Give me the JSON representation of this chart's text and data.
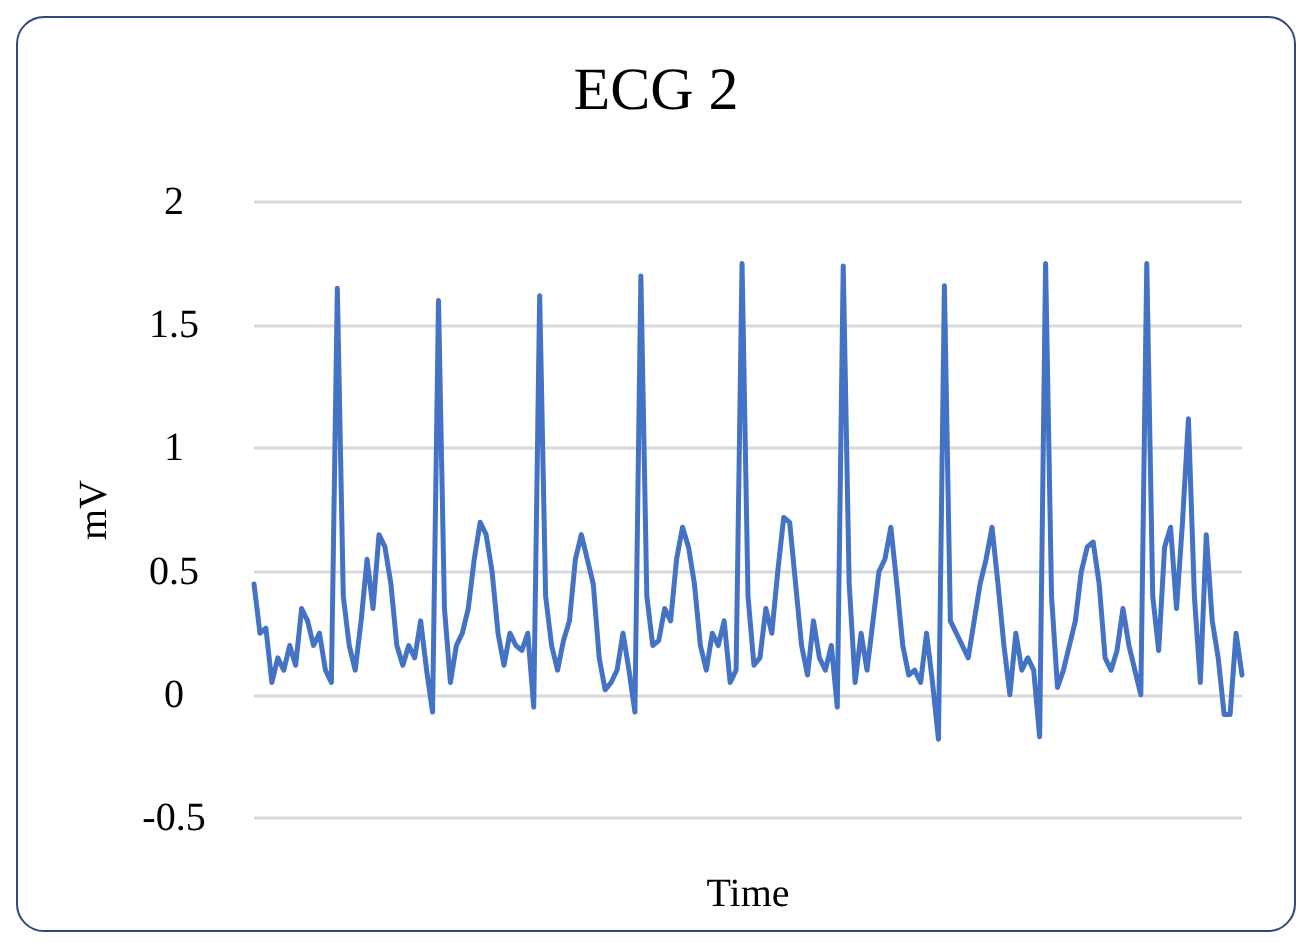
{
  "chart_data": {
    "type": "line",
    "title": "ECG 2",
    "xlabel": "Time",
    "ylabel": "mV",
    "categories": [
      null,
      null,
      null,
      null,
      null,
      null,
      null,
      null,
      null,
      null,
      null,
      null,
      null,
      null,
      null,
      null,
      null,
      null,
      null,
      null,
      null,
      null,
      null,
      null,
      null,
      null,
      null,
      null,
      null,
      null,
      null,
      null,
      null,
      null,
      null,
      null,
      null,
      null,
      null,
      null,
      null,
      null,
      null,
      null,
      null,
      null,
      null,
      null,
      null,
      null,
      null,
      null,
      null,
      null,
      null,
      null,
      null,
      null,
      null,
      null,
      null,
      null,
      null,
      null,
      null,
      null,
      null,
      null,
      null,
      null,
      null,
      null,
      null,
      null,
      null,
      null,
      null,
      null,
      null,
      null,
      null,
      null,
      null,
      null,
      null,
      null,
      null,
      null,
      null,
      null,
      null,
      null,
      null,
      null,
      null,
      null,
      null,
      null,
      null,
      null,
      null,
      null,
      null,
      null,
      null,
      null,
      null,
      null,
      null,
      null,
      null,
      null,
      null,
      null,
      null,
      null,
      null,
      null,
      null,
      null,
      null,
      null,
      null,
      null,
      null,
      null,
      null,
      null,
      null,
      null,
      null,
      null,
      null,
      null,
      null,
      null,
      null,
      null,
      null,
      null,
      null,
      null,
      null,
      null,
      null,
      null,
      null,
      null,
      null,
      null,
      null,
      null,
      null,
      null,
      null,
      null,
      null,
      null,
      null,
      null,
      null,
      null,
      null,
      null,
      null,
      null,
      null
    ],
    "series": [
      {
        "color": "#4472c4",
        "values": [
          0.45,
          0.25,
          0.27,
          0.05,
          0.15,
          0.1,
          0.2,
          0.12,
          0.35,
          0.3,
          0.2,
          0.25,
          0.1,
          0.05,
          1.65,
          0.4,
          0.2,
          0.1,
          0.3,
          0.55,
          0.35,
          0.65,
          0.6,
          0.45,
          0.2,
          0.12,
          0.2,
          0.15,
          0.3,
          0.1,
          -0.07,
          1.6,
          0.35,
          0.05,
          0.2,
          0.25,
          0.35,
          0.55,
          0.7,
          0.65,
          0.5,
          0.25,
          0.12,
          0.25,
          0.2,
          0.18,
          0.25,
          -0.05,
          1.62,
          0.4,
          0.2,
          0.1,
          0.22,
          0.3,
          0.55,
          0.65,
          0.55,
          0.45,
          0.15,
          0.02,
          0.05,
          0.1,
          0.25,
          0.1,
          -0.07,
          1.7,
          0.4,
          0.2,
          0.22,
          0.35,
          0.3,
          0.55,
          0.68,
          0.6,
          0.45,
          0.2,
          0.1,
          0.25,
          0.2,
          0.3,
          0.05,
          0.1,
          1.75,
          0.4,
          0.12,
          0.15,
          0.35,
          0.25,
          0.5,
          0.72,
          0.7,
          0.45,
          0.2,
          0.08,
          0.3,
          0.15,
          0.1,
          0.2,
          -0.05,
          1.74,
          0.45,
          0.05,
          0.25,
          0.1,
          0.3,
          0.5,
          0.55,
          0.68,
          0.45,
          0.2,
          0.08,
          0.1,
          0.05,
          0.25,
          0.05,
          -0.18,
          1.66,
          0.3,
          0.25,
          0.2,
          0.15,
          0.3,
          0.45,
          0.55,
          0.68,
          0.45,
          0.2,
          0.0,
          0.25,
          0.1,
          0.15,
          0.1,
          -0.17,
          1.75,
          0.4,
          0.03,
          0.1,
          0.2,
          0.3,
          0.5,
          0.6,
          0.62,
          0.45,
          0.15,
          0.1,
          0.18,
          0.35,
          0.2,
          0.1,
          0.0,
          1.75,
          0.4,
          0.18,
          0.6,
          0.68,
          0.35,
          0.7,
          1.12,
          0.4,
          0.05,
          0.65,
          0.3,
          0.15,
          -0.08,
          -0.08,
          0.25,
          0.08
        ]
      }
    ],
    "ylim": [
      -0.5,
      2
    ],
    "yticks": [
      -0.5,
      0,
      0.5,
      1,
      1.5,
      2
    ],
    "grid": "y",
    "line_style": "solid",
    "tick_labels": "y"
  }
}
